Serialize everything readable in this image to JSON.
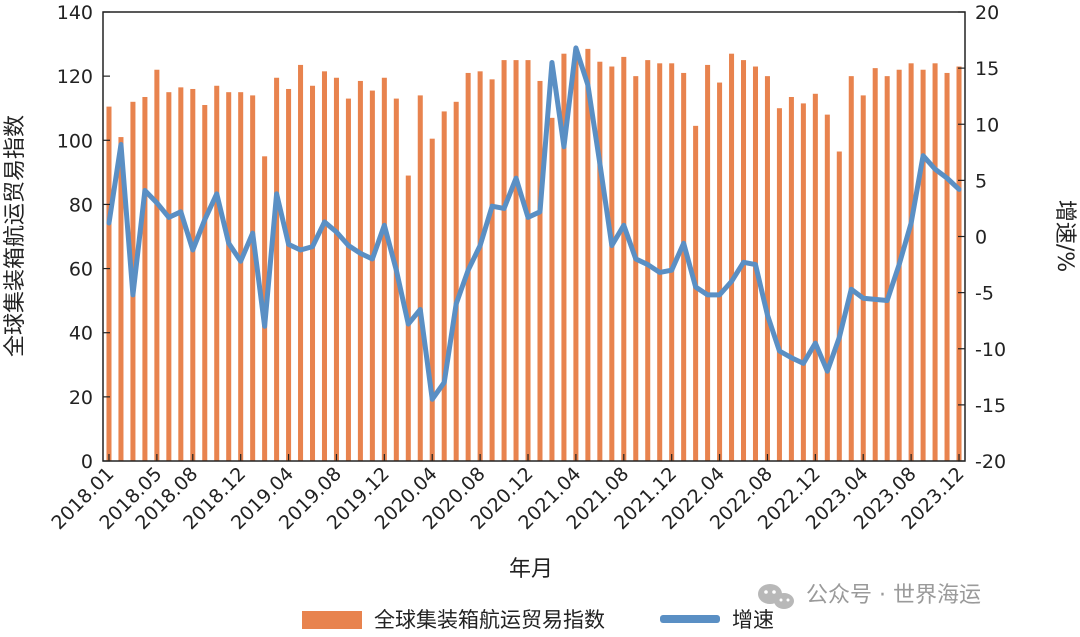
{
  "chart_data": {
    "type": "bar",
    "xlabel": "年月",
    "ylabel_left": "全球集装箱航运贸易指数",
    "ylabel_right": "增速/%",
    "ylim_left": [
      0,
      140
    ],
    "ylim_right": [
      -20,
      20
    ],
    "yticks_left": [
      0,
      20,
      40,
      60,
      80,
      100,
      120,
      140
    ],
    "yticks_right": [
      -20,
      -15,
      -10,
      -5,
      0,
      5,
      10,
      15,
      20
    ],
    "xtick_labels": [
      "2018.01",
      "2018.05",
      "2018.08",
      "2018.12",
      "2019.04",
      "2019.08",
      "2019.12",
      "2020.04",
      "2020.08",
      "2020.12",
      "2021.04",
      "2021.08",
      "2021.12",
      "2022.04",
      "2022.08",
      "2022.12",
      "2023.04",
      "2023.08",
      "2023.12"
    ],
    "xtick_index": [
      0,
      4,
      7,
      11,
      15,
      19,
      23,
      27,
      31,
      35,
      39,
      43,
      47,
      51,
      55,
      59,
      63,
      67,
      71
    ],
    "x": [
      "2018.01",
      "2018.02",
      "2018.03",
      "2018.04",
      "2018.05",
      "2018.06",
      "2018.07",
      "2018.08",
      "2018.09",
      "2018.10",
      "2018.11",
      "2018.12",
      "2019.01",
      "2019.02",
      "2019.03",
      "2019.04",
      "2019.05",
      "2019.06",
      "2019.07",
      "2019.08",
      "2019.09",
      "2019.10",
      "2019.11",
      "2019.12",
      "2020.01",
      "2020.02",
      "2020.03",
      "2020.04",
      "2020.05",
      "2020.06",
      "2020.07",
      "2020.08",
      "2020.09",
      "2020.10",
      "2020.11",
      "2020.12",
      "2021.01",
      "2021.02",
      "2021.03",
      "2021.04",
      "2021.05",
      "2021.06",
      "2021.07",
      "2021.08",
      "2021.09",
      "2021.10",
      "2021.11",
      "2021.12",
      "2022.01",
      "2022.02",
      "2022.03",
      "2022.04",
      "2022.05",
      "2022.06",
      "2022.07",
      "2022.08",
      "2022.09",
      "2022.10",
      "2022.11",
      "2022.12",
      "2023.01",
      "2023.02",
      "2023.03",
      "2023.04",
      "2023.05",
      "2023.06",
      "2023.07",
      "2023.08",
      "2023.09",
      "2023.10",
      "2023.11",
      "2023.12"
    ],
    "series": [
      {
        "name": "全球集装箱航运贸易指数",
        "type": "bar",
        "axis": "left",
        "color": "#E8834E",
        "values": [
          110.5,
          101,
          112,
          113.5,
          122,
          115,
          116.5,
          116,
          111,
          117,
          115,
          115,
          114,
          95,
          119.5,
          116,
          123.5,
          117,
          121.5,
          119.5,
          113,
          118.5,
          115.5,
          119.5,
          113,
          89,
          114,
          100.5,
          109,
          112,
          121,
          121.5,
          119,
          125,
          125,
          125,
          118.5,
          107,
          127,
          128.5,
          128.5,
          124.5,
          123,
          126,
          120,
          125,
          124,
          124,
          121,
          104.5,
          123.5,
          118,
          127,
          125,
          123,
          120,
          110,
          113.5,
          111.5,
          114.5,
          108,
          96.5,
          120,
          114,
          122.5,
          120,
          122,
          124,
          122,
          124,
          121,
          123
        ]
      },
      {
        "name": "增速",
        "type": "line",
        "axis": "right",
        "color": "#5A8FC4",
        "values": [
          1.2,
          8.2,
          -5.2,
          4.1,
          3,
          1.7,
          2.2,
          -1.2,
          1.5,
          3.8,
          -0.6,
          -2.2,
          0.3,
          -8,
          3.8,
          -0.7,
          -1.2,
          -0.9,
          1.3,
          0.4,
          -0.8,
          -1.5,
          -2,
          1,
          -3,
          -7.8,
          -6.5,
          -14.5,
          -13,
          -6,
          -3,
          -0.8,
          2.7,
          2.5,
          5.2,
          1.7,
          2.2,
          15.5,
          8,
          16.8,
          13.5,
          6.5,
          -0.8,
          1,
          -2,
          -2.5,
          -3.2,
          -3,
          -0.6,
          -4.5,
          -5.2,
          -5.2,
          -4,
          -2.3,
          -2.5,
          -7,
          -10.2,
          -10.8,
          -11.3,
          -9.5,
          -12,
          -9,
          -4.7,
          -5.5,
          -5.6,
          -5.7,
          -2.5,
          1.2,
          7.2,
          6,
          5.2,
          4.2
        ]
      }
    ],
    "legend": {
      "position": "bottom-center",
      "items": [
        {
          "label": "全球集装箱航运贸易指数",
          "kind": "bar"
        },
        {
          "label": "增速",
          "kind": "line"
        }
      ]
    },
    "grid": false
  },
  "watermark": {
    "text": "公众号 · 世界海运",
    "icon": "wechat-icon"
  }
}
